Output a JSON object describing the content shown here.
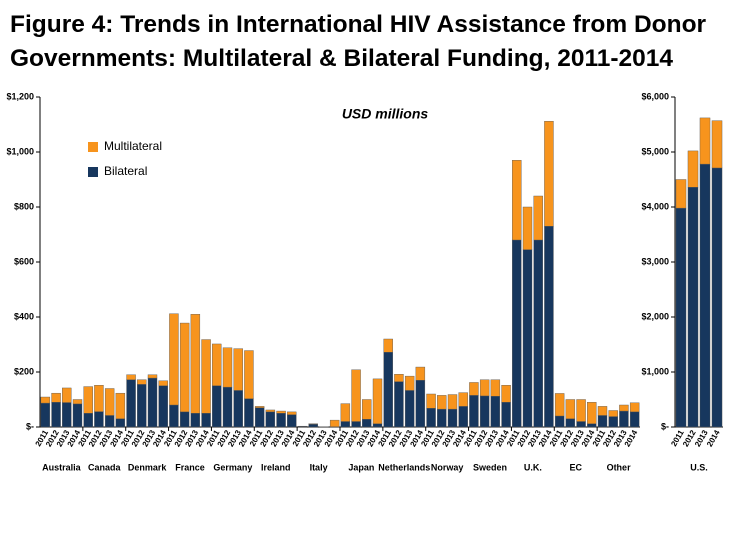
{
  "chart_data": [
    {
      "type": "bar",
      "stacked": true,
      "title": "Figure 4: Trends in International HIV Assistance from Donor Governments: Multilateral & Bilateral Funding, 2011-2014",
      "subtitle": "USD millions",
      "groups": [
        "Australia",
        "Canada",
        "Denmark",
        "France",
        "Germany",
        "Ireland",
        "Italy",
        "Japan",
        "Netherlands",
        "Norway",
        "Sweden",
        "U.K.",
        "EC",
        "Other"
      ],
      "categories": [
        "2011",
        "2012",
        "2013",
        "2014",
        "2011",
        "2012",
        "2013",
        "2014",
        "2011",
        "2012",
        "2013",
        "2014",
        "2011",
        "2012",
        "2013",
        "2014",
        "2011",
        "2012",
        "2013",
        "2014",
        "2011",
        "2012",
        "2013",
        "2014",
        "2011",
        "2012",
        "2013",
        "2014",
        "2011",
        "2012",
        "2013",
        "2014",
        "2011",
        "2012",
        "2013",
        "2014",
        "2011",
        "2012",
        "2013",
        "2014",
        "2011",
        "2012",
        "2013",
        "2014",
        "2011",
        "2012",
        "2013",
        "2014",
        "2011",
        "2012",
        "2013",
        "2014",
        "2011",
        "2012",
        "2013",
        "2014"
      ],
      "series": [
        {
          "name": "Multilateral",
          "color": "#f7941d",
          "values": [
            22,
            33,
            53,
            16,
            97,
            96,
            98,
            93,
            18,
            17,
            12,
            18,
            332,
            323,
            360,
            268,
            152,
            143,
            152,
            175,
            5,
            7,
            8,
            10,
            1,
            2,
            1,
            24,
            65,
            188,
            72,
            163,
            48,
            27,
            52,
            48,
            52,
            50,
            53,
            50,
            47,
            59,
            60,
            62,
            290,
            155,
            160,
            382,
            82,
            70,
            80,
            78,
            33,
            22,
            22,
            33
          ]
        },
        {
          "name": "Bilateral",
          "color": "#17375e",
          "values": [
            87,
            90,
            89,
            84,
            50,
            56,
            42,
            30,
            172,
            155,
            178,
            150,
            80,
            55,
            50,
            50,
            150,
            145,
            133,
            103,
            70,
            55,
            50,
            45,
            2,
            10,
            0,
            1,
            20,
            20,
            28,
            12,
            272,
            165,
            133,
            170,
            68,
            65,
            65,
            75,
            115,
            113,
            112,
            90,
            680,
            645,
            680,
            730,
            40,
            30,
            20,
            12,
            42,
            38,
            58,
            55
          ]
        }
      ],
      "ylim": [
        0,
        1200
      ],
      "yticks": [
        {
          "value": 0,
          "label": "$-"
        },
        {
          "value": 200,
          "label": "$200"
        },
        {
          "value": 400,
          "label": "$400"
        },
        {
          "value": 600,
          "label": "$600"
        },
        {
          "value": 800,
          "label": "$800"
        },
        {
          "value": 1000,
          "label": "$1,000"
        },
        {
          "value": 1200,
          "label": "$1,200"
        }
      ]
    },
    {
      "type": "bar",
      "stacked": true,
      "groups": [
        "U.S."
      ],
      "categories": [
        "2011",
        "2012",
        "2013",
        "2014"
      ],
      "series": [
        {
          "color": "#f7941d",
          "values": [
            520,
            660,
            840,
            860
          ]
        },
        {
          "color": "#17375e",
          "values": [
            3980,
            4360,
            4780,
            4710
          ]
        }
      ],
      "ylim": [
        0,
        6000
      ],
      "yticks": [
        {
          "value": 0,
          "label": "$-"
        },
        {
          "value": 1000,
          "label": "$1,000"
        },
        {
          "value": 2000,
          "label": "$2,000"
        },
        {
          "value": 3000,
          "label": "$3,000"
        },
        {
          "value": 4000,
          "label": "$4,000"
        },
        {
          "value": 5000,
          "label": "$5,000"
        },
        {
          "value": 6000,
          "label": "$6,000"
        }
      ]
    }
  ]
}
